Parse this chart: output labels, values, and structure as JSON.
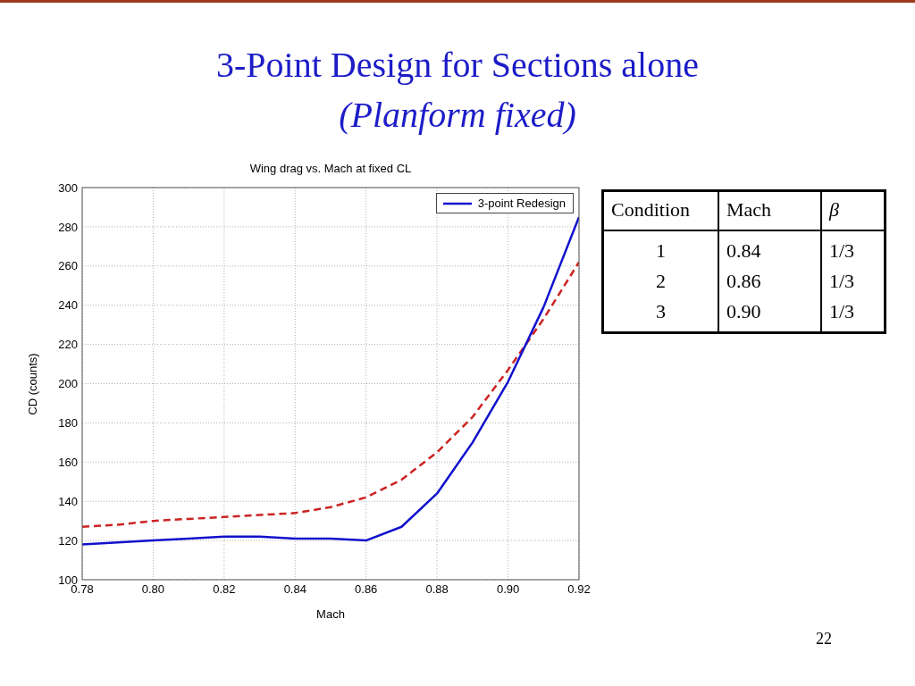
{
  "chart_data": [
    {
      "type": "line",
      "title": "3-Point Design for Sections alone",
      "subtitle": "(Planform fixed)",
      "xlabel": "Mach",
      "ylabel": "CD (counts)",
      "annotations": [
        "Wing drag vs. Mach at fixed CL",
        "22"
      ],
      "x": [
        0.78,
        0.79,
        0.8,
        0.81,
        0.82,
        0.83,
        0.84,
        0.85,
        0.86,
        0.87,
        0.88,
        0.89,
        0.9,
        0.91,
        0.92
      ],
      "series": [
        {
          "color": "#cc2222",
          "line_style": "dashed",
          "values": [
            127,
            128,
            130,
            131,
            132,
            133,
            134,
            137,
            142,
            151,
            165,
            183,
            207,
            233,
            262
          ]
        },
        {
          "name": "3-point Redesign",
          "color": "#1111cc",
          "line_style": "solid",
          "values": [
            118,
            119,
            120,
            121,
            122,
            122,
            121,
            121,
            120,
            127,
            144,
            170,
            201,
            239,
            285
          ]
        }
      ],
      "xlim": [
        0.78,
        0.92
      ],
      "xticks": [
        0.78,
        {
          "value": 0.8,
          "label": "0.80"
        },
        0.82,
        0.84,
        0.86,
        0.88,
        {
          "value": 0.9,
          "label": "0.90"
        },
        0.92
      ],
      "ylim": [
        100,
        300
      ],
      "yticks": [
        100,
        120,
        140,
        160,
        180,
        200,
        220,
        240,
        260,
        280,
        300
      ],
      "grid": true,
      "legend": "top right"
    },
    {
      "type": "other",
      "categories": [
        "Condition",
        "Mach",
        "β"
      ],
      "cell_labels": [
        [
          "1",
          "0.84",
          "1/3"
        ],
        [
          "2",
          "0.86",
          "1/3"
        ],
        [
          "3",
          "0.90",
          "1/3"
        ]
      ]
    }
  ]
}
